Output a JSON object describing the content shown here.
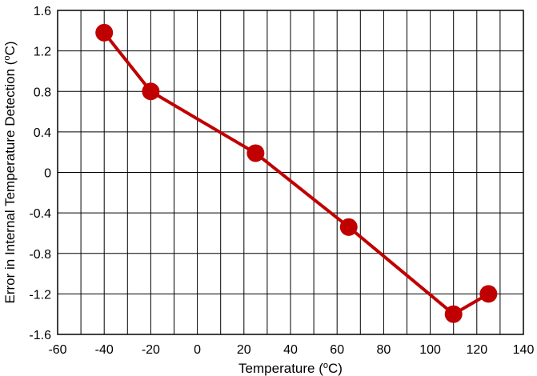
{
  "chart_data": {
    "type": "line",
    "title": "",
    "xlabel": {
      "prefix": "Temperature (",
      "sup": "o",
      "suffix": "C)"
    },
    "ylabel": {
      "prefix": "Error in Internal Temperature Detection (",
      "sup": "o",
      "suffix": "C)"
    },
    "xlim": [
      -60,
      140
    ],
    "ylim": [
      -1.6,
      1.6
    ],
    "x_ticks": [
      -60,
      -40,
      -20,
      0,
      20,
      40,
      60,
      80,
      100,
      120,
      140
    ],
    "y_ticks": [
      1.6,
      1.2,
      0.8,
      0.4,
      0,
      -0.4,
      -0.8,
      -1.2,
      -1.6
    ],
    "x_tick_labels": [
      "-60",
      "-40",
      "-20",
      "0",
      "20",
      "40",
      "60",
      "80",
      "100",
      "120",
      "140"
    ],
    "y_tick_labels": [
      "1.6",
      "1.2",
      "0.8",
      "0.4",
      "0",
      "-0.4",
      "-0.8",
      "-1.2",
      "-1.6"
    ],
    "grid": true,
    "x_grid_minor_step": 10,
    "y_grid_step": 0.4,
    "series": [
      {
        "x": [
          -40,
          -20,
          25,
          65,
          110,
          125
        ],
        "y": [
          1.38,
          0.8,
          0.19,
          -0.54,
          -1.4,
          -1.2
        ],
        "color": "#c00000",
        "marker": "circle"
      }
    ]
  }
}
